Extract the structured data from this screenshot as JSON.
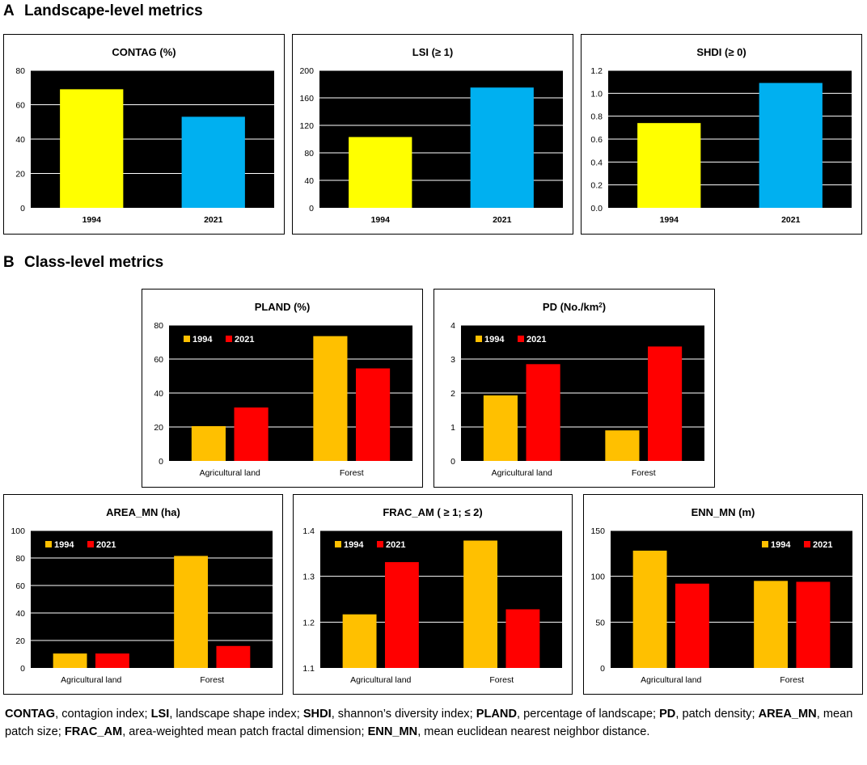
{
  "section_a": {
    "letter": "A",
    "title": "Landscape-level metrics"
  },
  "section_b": {
    "letter": "B",
    "title": "Class-level metrics"
  },
  "colors": {
    "y1994_a": "#ffff00",
    "y2021_a": "#00b0f0",
    "y1994_b": "#ffc000",
    "y2021_b": "#ff0000",
    "plot_bg": "#000000",
    "grid": "#ffffff"
  },
  "chart_data": [
    {
      "id": "contag",
      "type": "bar",
      "title": "CONTAG (%)",
      "categories": [
        "1994",
        "2021"
      ],
      "values": [
        69,
        53
      ],
      "colors": [
        "#ffff00",
        "#00b0f0"
      ],
      "ylim": [
        0,
        80
      ],
      "yticks": [
        0,
        20,
        40,
        60,
        80
      ],
      "ytick_labels": [
        "0",
        "20",
        "40",
        "60",
        "80"
      ]
    },
    {
      "id": "lsi",
      "type": "bar",
      "title": "LSI (≥ 1)",
      "categories": [
        "1994",
        "2021"
      ],
      "values": [
        103,
        175
      ],
      "colors": [
        "#ffff00",
        "#00b0f0"
      ],
      "ylim": [
        0,
        200
      ],
      "yticks": [
        0,
        40,
        80,
        120,
        160,
        200
      ],
      "ytick_labels": [
        "0",
        "40",
        "80",
        "120",
        "160",
        "200"
      ]
    },
    {
      "id": "shdi",
      "type": "bar",
      "title": "SHDI (≥ 0)",
      "categories": [
        "1994",
        "2021"
      ],
      "values": [
        0.74,
        1.09
      ],
      "colors": [
        "#ffff00",
        "#00b0f0"
      ],
      "ylim": [
        0,
        1.2
      ],
      "yticks": [
        0,
        0.2,
        0.4,
        0.6,
        0.8,
        1.0,
        1.2
      ],
      "ytick_labels": [
        "0.0",
        "0.2",
        "0.4",
        "0.6",
        "0.8",
        "1.0",
        "1.2"
      ]
    },
    {
      "id": "pland",
      "type": "bar",
      "title": "PLAND (%)",
      "categories": [
        "Agricultural land",
        "Forest"
      ],
      "series": [
        {
          "name": "1994",
          "values": [
            20.5,
            73.5
          ],
          "color": "#ffc000"
        },
        {
          "name": "2021",
          "values": [
            31.5,
            54.5
          ],
          "color": "#ff0000"
        }
      ],
      "ylim": [
        0,
        80
      ],
      "yticks": [
        0,
        20,
        40,
        60,
        80
      ],
      "ytick_labels": [
        "0",
        "20",
        "40",
        "60",
        "80"
      ],
      "legend": "top-left"
    },
    {
      "id": "pd",
      "type": "bar",
      "title": "PD (No./km",
      "title_sup": "2",
      "title_end": ")",
      "categories": [
        "Agricultural land",
        "Forest"
      ],
      "series": [
        {
          "name": "1994",
          "values": [
            1.93,
            0.9
          ],
          "color": "#ffc000"
        },
        {
          "name": "2021",
          "values": [
            2.85,
            3.37
          ],
          "color": "#ff0000"
        }
      ],
      "ylim": [
        0,
        4
      ],
      "yticks": [
        0,
        1,
        2,
        3,
        4
      ],
      "ytick_labels": [
        "0",
        "1",
        "2",
        "3",
        "4"
      ],
      "legend": "top-left"
    },
    {
      "id": "area_mn",
      "type": "bar",
      "title": "AREA_MN (ha)",
      "categories": [
        "Agricultural land",
        "Forest"
      ],
      "series": [
        {
          "name": "1994",
          "values": [
            10.5,
            81.5
          ],
          "color": "#ffc000"
        },
        {
          "name": "2021",
          "values": [
            10.5,
            16
          ],
          "color": "#ff0000"
        }
      ],
      "ylim": [
        0,
        100
      ],
      "yticks": [
        0,
        20,
        40,
        60,
        80,
        100
      ],
      "ytick_labels": [
        "0",
        "20",
        "40",
        "60",
        "80",
        "100"
      ],
      "legend": "top-left"
    },
    {
      "id": "frac_am",
      "type": "bar",
      "title": "FRAC_AM ( ≥ 1; ≤  2)",
      "categories": [
        "Agricultural land",
        "Forest"
      ],
      "series": [
        {
          "name": "1994",
          "values": [
            1.217,
            1.378
          ],
          "color": "#ffc000"
        },
        {
          "name": "2021",
          "values": [
            1.331,
            1.228
          ],
          "color": "#ff0000"
        }
      ],
      "ylim": [
        1.1,
        1.4
      ],
      "yticks": [
        1.1,
        1.2,
        1.3,
        1.4
      ],
      "ytick_labels": [
        "1.1",
        "1.2",
        "1.3",
        "1.4"
      ],
      "legend": "top-left"
    },
    {
      "id": "enn_mn",
      "type": "bar",
      "title": "ENN_MN (m)",
      "categories": [
        "Agricultural land",
        "Forest"
      ],
      "series": [
        {
          "name": "1994",
          "values": [
            128,
            95
          ],
          "color": "#ffc000"
        },
        {
          "name": "2021",
          "values": [
            92,
            94
          ],
          "color": "#ff0000"
        }
      ],
      "ylim": [
        0,
        150
      ],
      "yticks": [
        0,
        50,
        100,
        150
      ],
      "ytick_labels": [
        "0",
        "50",
        "100",
        "150"
      ],
      "legend": "top-right"
    }
  ],
  "caption": [
    {
      "b": "CONTAG",
      "t": ", contagion index; "
    },
    {
      "b": "LSI",
      "t": ", landscape shape index; "
    },
    {
      "b": "SHDI",
      "t": ", shannon’s diversity index; "
    },
    {
      "b": "PLAND",
      "t": ", percentage of landscape; "
    },
    {
      "b": "PD",
      "t": ", patch density; "
    },
    {
      "b": "AREA_MN",
      "t": ", mean patch size; "
    },
    {
      "b": "FRAC_AM",
      "t": ", area-weighted mean patch fractal dimension; "
    },
    {
      "b": "ENN_MN",
      "t": ", mean euclidean nearest neighbor distance."
    }
  ]
}
